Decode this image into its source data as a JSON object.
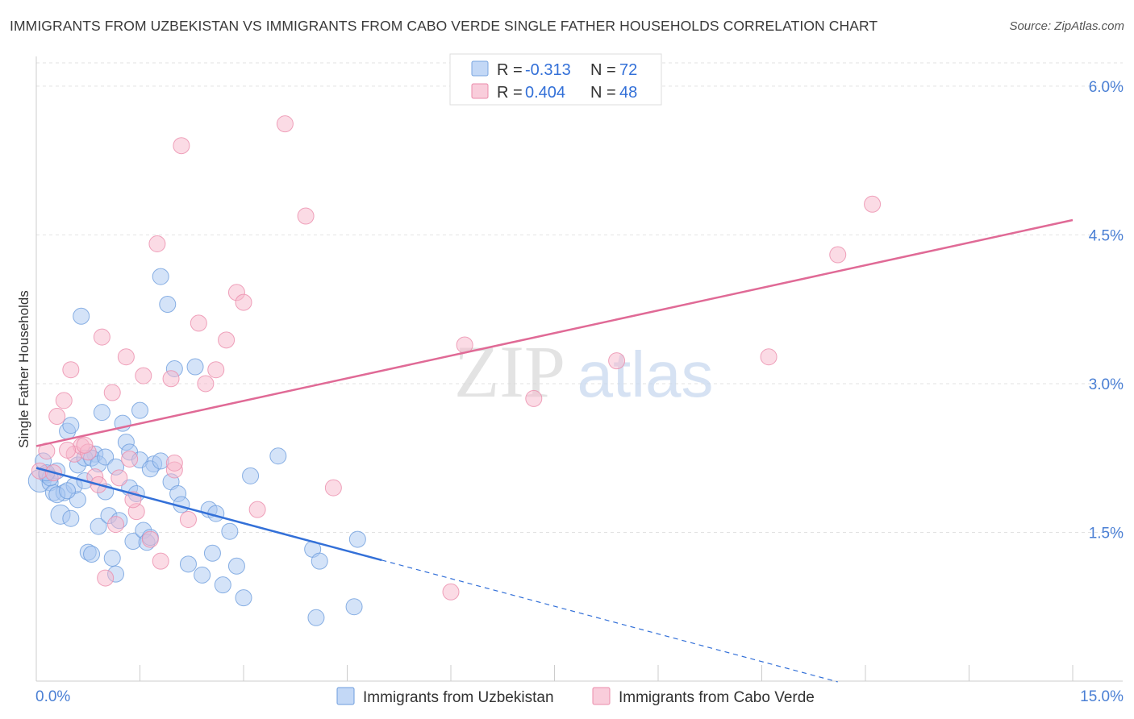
{
  "title": "IMMIGRANTS FROM UZBEKISTAN VS IMMIGRANTS FROM CABO VERDE SINGLE FATHER HOUSEHOLDS CORRELATION CHART",
  "source": "Source: ZipAtlas.com",
  "watermark": {
    "zip": "ZIP",
    "atlas": "atlas"
  },
  "legend_top": [
    {
      "r_label": "R = ",
      "r_value": "-0.313",
      "n_label": "N = ",
      "n_value": "72",
      "color": "#a9c8f2",
      "stroke": "#7aa6e0"
    },
    {
      "r_label": "R = ",
      "r_value": "0.404",
      "n_label": "N = ",
      "n_value": "48",
      "color": "#f7b8cc",
      "stroke": "#eb8cab"
    }
  ],
  "chart_data": {
    "type": "scatter",
    "title": "IMMIGRANTS FROM UZBEKISTAN VS IMMIGRANTS FROM CABO VERDE SINGLE FATHER HOUSEHOLDS CORRELATION CHART",
    "xlabel": "",
    "ylabel": "Single Father Households",
    "xlim": [
      0,
      15
    ],
    "ylim": [
      0,
      6.3
    ],
    "x_tick_labels": [
      "0.0%",
      "15.0%"
    ],
    "y_ticks": [
      1.5,
      3.0,
      4.5,
      6.0
    ],
    "y_tick_labels": [
      "1.5%",
      "3.0%",
      "4.5%",
      "6.0%"
    ],
    "grid": true,
    "legend_placement": "top-center",
    "series": [
      {
        "name": "Immigrants from Uzbekistan",
        "color": "#a9c8f2",
        "stroke": "#6e9ddd",
        "line_color": "#3370d8",
        "trend": {
          "x0": 0.0,
          "y0": 2.15,
          "x1": 5.0,
          "y1": 1.22,
          "dash_to_x": 11.6
        },
        "x": [
          0.05,
          0.1,
          0.15,
          0.2,
          0.25,
          0.3,
          0.35,
          0.4,
          0.45,
          0.5,
          0.55,
          0.6,
          0.65,
          0.7,
          0.75,
          0.8,
          0.85,
          0.9,
          0.95,
          1.0,
          1.05,
          1.1,
          1.15,
          1.2,
          1.25,
          1.3,
          1.35,
          1.4,
          1.45,
          1.5,
          1.55,
          1.6,
          1.65,
          1.7,
          1.8,
          1.9,
          1.95,
          2.0,
          2.05,
          2.1,
          2.2,
          2.3,
          2.4,
          2.5,
          2.55,
          2.6,
          2.7,
          2.8,
          2.9,
          3.0,
          3.1,
          3.5,
          4.0,
          4.05,
          4.1,
          4.6,
          4.65,
          0.2,
          0.3,
          0.45,
          0.5,
          0.6,
          0.7,
          0.8,
          0.9,
          1.0,
          1.15,
          1.35,
          1.5,
          1.65,
          1.8,
          0.15
        ],
        "y": [
          2.02,
          2.22,
          2.08,
          2.0,
          1.9,
          2.12,
          1.68,
          1.9,
          2.52,
          1.64,
          1.97,
          1.83,
          3.68,
          2.02,
          1.3,
          1.28,
          2.29,
          1.56,
          2.71,
          1.91,
          1.67,
          1.24,
          1.08,
          1.62,
          2.6,
          2.41,
          1.95,
          1.41,
          1.89,
          2.73,
          1.52,
          1.4,
          1.45,
          2.19,
          4.08,
          3.8,
          2.01,
          3.15,
          1.89,
          1.78,
          1.18,
          3.17,
          1.07,
          1.73,
          1.29,
          1.69,
          0.97,
          1.51,
          1.16,
          0.84,
          2.07,
          2.27,
          1.33,
          0.64,
          1.21,
          0.75,
          1.43,
          2.05,
          1.88,
          1.92,
          2.58,
          2.18,
          2.25,
          2.25,
          2.19,
          2.26,
          2.16,
          2.31,
          2.23,
          2.14,
          2.22,
          2.1
        ],
        "r": [
          14,
          10,
          10,
          10,
          10,
          10,
          12,
          10,
          10,
          10,
          10,
          10,
          10,
          10,
          10,
          10,
          10,
          10,
          10,
          10,
          10,
          10,
          10,
          10,
          10,
          10,
          10,
          10,
          10,
          10,
          10,
          10,
          10,
          10,
          10,
          10,
          10,
          10,
          10,
          10,
          10,
          10,
          10,
          10,
          10,
          10,
          10,
          10,
          10,
          10,
          10,
          10,
          10,
          10,
          10,
          10,
          10,
          10,
          10,
          10,
          10,
          10,
          10,
          10,
          10,
          10,
          10,
          10,
          10,
          10,
          10,
          10
        ]
      },
      {
        "name": "Immigrants from Cabo Verde",
        "color": "#f7b8cc",
        "stroke": "#eb8cab",
        "line_color": "#e06a96",
        "trend": {
          "x0": 0.0,
          "y0": 2.37,
          "x1": 15.0,
          "y1": 4.65
        },
        "x": [
          0.05,
          0.15,
          0.3,
          0.4,
          0.5,
          0.55,
          0.65,
          0.75,
          0.85,
          0.95,
          1.0,
          1.1,
          1.15,
          1.3,
          1.35,
          1.45,
          1.55,
          1.65,
          1.75,
          1.8,
          1.95,
          2.0,
          2.1,
          2.2,
          2.35,
          2.45,
          2.6,
          2.75,
          2.9,
          3.0,
          3.2,
          3.6,
          3.9,
          4.3,
          6.0,
          6.2,
          7.2,
          8.4,
          10.6,
          11.6,
          12.1,
          0.25,
          0.45,
          0.7,
          0.9,
          1.2,
          1.4,
          2.0
        ],
        "y": [
          2.12,
          2.32,
          2.67,
          2.83,
          3.14,
          2.29,
          2.37,
          2.31,
          2.06,
          3.47,
          1.04,
          2.91,
          1.58,
          3.27,
          2.24,
          1.71,
          3.08,
          1.43,
          4.41,
          1.21,
          3.05,
          2.13,
          5.4,
          1.63,
          3.61,
          3.0,
          3.14,
          3.44,
          3.92,
          3.82,
          1.73,
          5.62,
          4.69,
          1.95,
          0.9,
          3.39,
          2.85,
          3.23,
          3.27,
          4.3,
          4.81,
          2.1,
          2.33,
          2.38,
          1.98,
          2.05,
          1.83,
          2.2
        ],
        "r": [
          10,
          10,
          10,
          10,
          10,
          10,
          10,
          10,
          10,
          10,
          10,
          10,
          10,
          10,
          10,
          10,
          10,
          10,
          10,
          10,
          10,
          10,
          10,
          10,
          10,
          10,
          10,
          10,
          10,
          10,
          10,
          10,
          10,
          10,
          10,
          10,
          10,
          10,
          10,
          10,
          10,
          10,
          10,
          10,
          10,
          10,
          10,
          10
        ]
      }
    ]
  }
}
